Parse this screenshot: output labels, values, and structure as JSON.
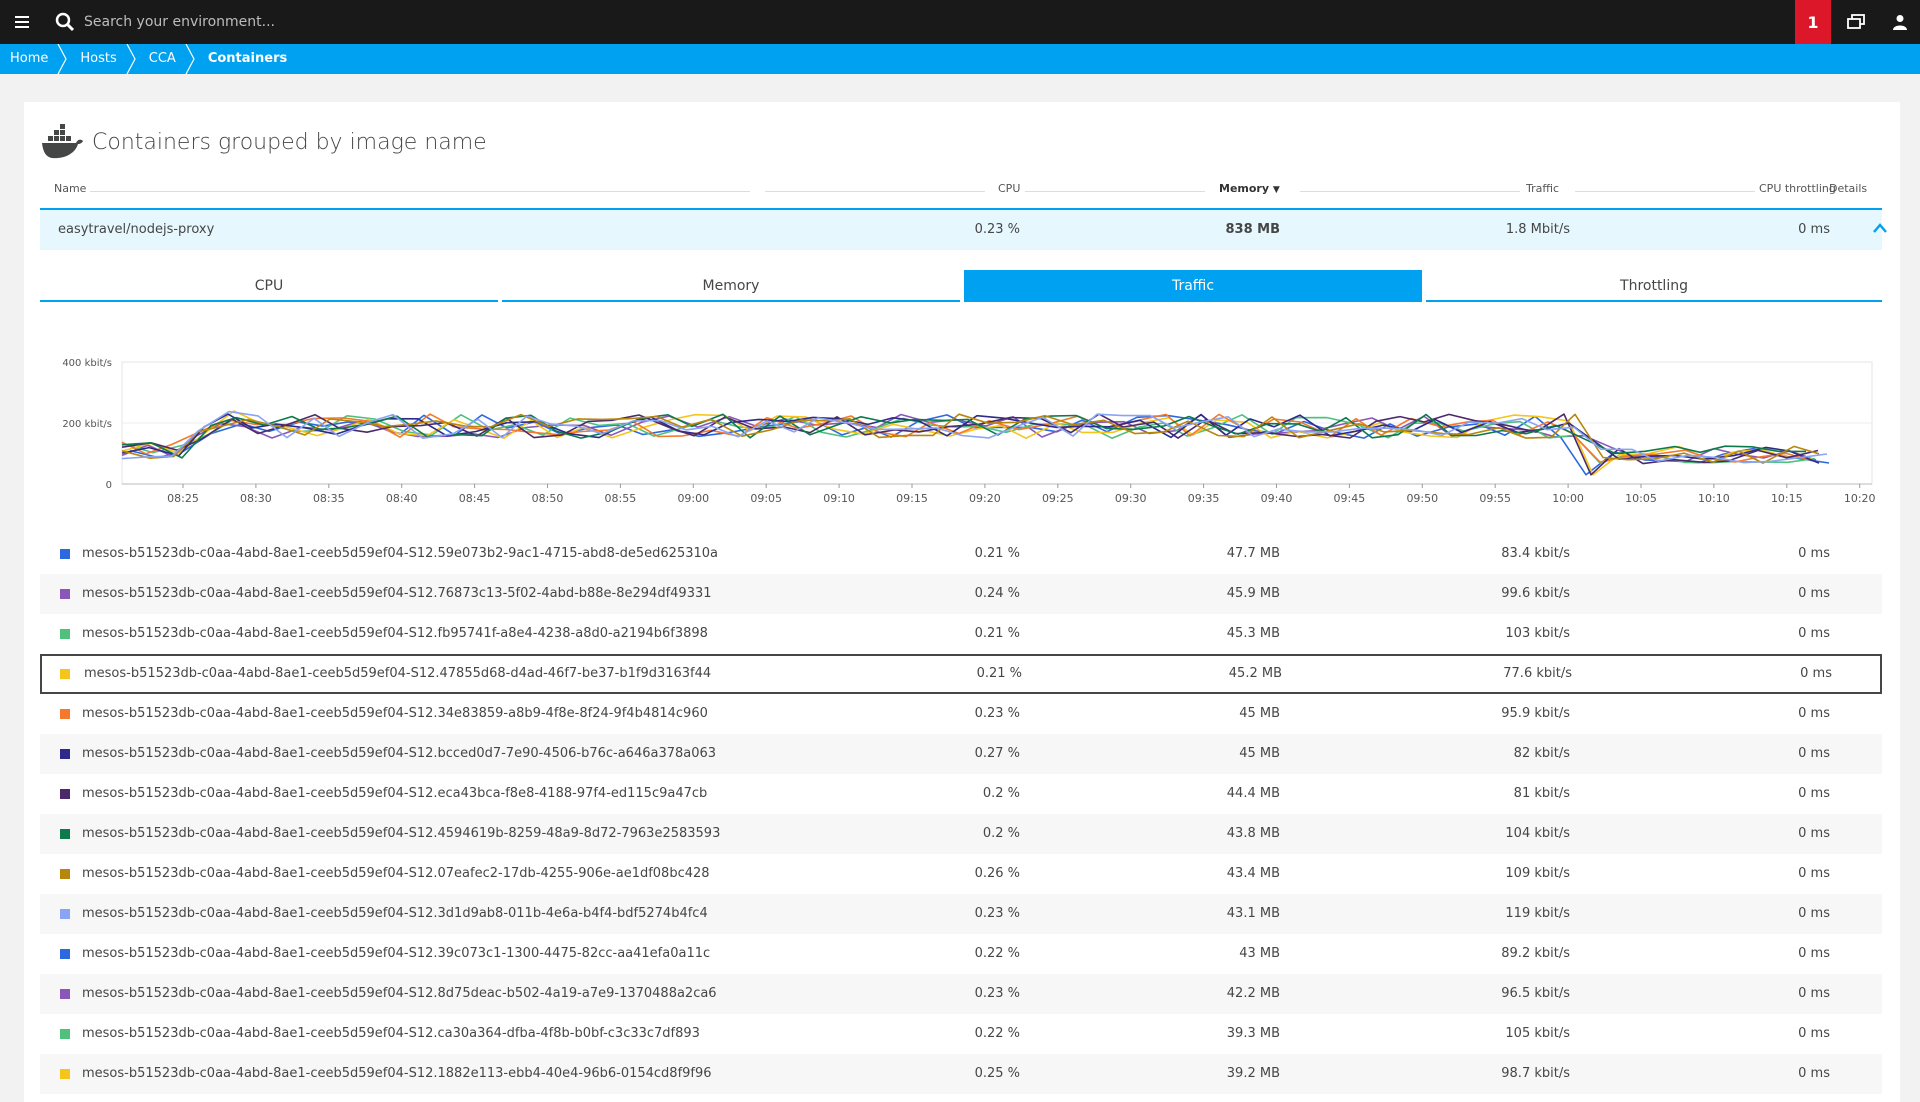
{
  "topbar": {
    "search_placeholder": "Search your environment...",
    "alert_count": "1"
  },
  "breadcrumb": [
    "Home",
    "Hosts",
    "CCA",
    "Containers"
  ],
  "card": {
    "title": "Containers grouped by image name",
    "columns": {
      "name": "Name",
      "cpu": "CPU",
      "memory": "Memory",
      "memory_sort": "▼",
      "traffic": "Traffic",
      "throttling": "CPU throttling",
      "details": "Details"
    },
    "group": {
      "name": "easytravel/nodejs-proxy",
      "cpu": "0.23 %",
      "memory": "838 MB",
      "traffic": "1.8 Mbit/s",
      "throttling": "0 ms"
    },
    "tabs": [
      "CPU",
      "Memory",
      "Traffic",
      "Throttling"
    ],
    "active_tab": "Traffic"
  },
  "chart_data": {
    "type": "line",
    "unit": "kbit/s",
    "y_ticks": [
      "400 kbit/s",
      "200 kbit/s",
      "0"
    ],
    "ylim": [
      0,
      400
    ],
    "x_ticks": [
      "08:25",
      "08:30",
      "08:35",
      "08:40",
      "08:45",
      "08:50",
      "08:55",
      "09:00",
      "09:05",
      "09:10",
      "09:15",
      "09:20",
      "09:25",
      "09:30",
      "09:35",
      "09:40",
      "09:45",
      "09:50",
      "09:55",
      "10:00",
      "10:05",
      "10:10",
      "10:15",
      "10:20"
    ],
    "series_colors": [
      "#2c69e0",
      "#8a56b8",
      "#4fc17d",
      "#f5c51b",
      "#f4792c",
      "#2d2a8b",
      "#4b2a6b",
      "#0c7a4a",
      "#b7860b",
      "#8aa4f5"
    ]
  },
  "containers": [
    {
      "color": "#2c69e0",
      "name": "mesos-b51523db-c0aa-4abd-8ae1-ceeb5d59ef04-S12.59e073b2-9ac1-4715-abd8-de5ed625310a",
      "cpu": "0.21 %",
      "memory": "47.7 MB",
      "traffic": "83.4 kbit/s",
      "throttling": "0 ms"
    },
    {
      "color": "#8a56b8",
      "name": "mesos-b51523db-c0aa-4abd-8ae1-ceeb5d59ef04-S12.76873c13-5f02-4abd-b88e-8e294df49331",
      "cpu": "0.24 %",
      "memory": "45.9 MB",
      "traffic": "99.6 kbit/s",
      "throttling": "0 ms"
    },
    {
      "color": "#4fc17d",
      "name": "mesos-b51523db-c0aa-4abd-8ae1-ceeb5d59ef04-S12.fb95741f-a8e4-4238-a8d0-a2194b6f3898",
      "cpu": "0.21 %",
      "memory": "45.3 MB",
      "traffic": "103 kbit/s",
      "throttling": "0 ms"
    },
    {
      "color": "#f5c51b",
      "name": "mesos-b51523db-c0aa-4abd-8ae1-ceeb5d59ef04-S12.47855d68-d4ad-46f7-be37-b1f9d3163f44",
      "cpu": "0.21 %",
      "memory": "45.2 MB",
      "traffic": "77.6 kbit/s",
      "throttling": "0 ms"
    },
    {
      "color": "#f4792c",
      "name": "mesos-b51523db-c0aa-4abd-8ae1-ceeb5d59ef04-S12.34e83859-a8b9-4f8e-8f24-9f4b4814c960",
      "cpu": "0.23 %",
      "memory": "45 MB",
      "traffic": "95.9 kbit/s",
      "throttling": "0 ms"
    },
    {
      "color": "#2d2a8b",
      "name": "mesos-b51523db-c0aa-4abd-8ae1-ceeb5d59ef04-S12.bcced0d7-7e90-4506-b76c-a646a378a063",
      "cpu": "0.27 %",
      "memory": "45 MB",
      "traffic": "82 kbit/s",
      "throttling": "0 ms"
    },
    {
      "color": "#4b2a6b",
      "name": "mesos-b51523db-c0aa-4abd-8ae1-ceeb5d59ef04-S12.eca43bca-f8e8-4188-97f4-ed115c9a47cb",
      "cpu": "0.2 %",
      "memory": "44.4 MB",
      "traffic": "81 kbit/s",
      "throttling": "0 ms"
    },
    {
      "color": "#0c7a4a",
      "name": "mesos-b51523db-c0aa-4abd-8ae1-ceeb5d59ef04-S12.4594619b-8259-48a9-8d72-7963e2583593",
      "cpu": "0.2 %",
      "memory": "43.8 MB",
      "traffic": "104 kbit/s",
      "throttling": "0 ms"
    },
    {
      "color": "#b7860b",
      "name": "mesos-b51523db-c0aa-4abd-8ae1-ceeb5d59ef04-S12.07eafec2-17db-4255-906e-ae1df08bc428",
      "cpu": "0.26 %",
      "memory": "43.4 MB",
      "traffic": "109 kbit/s",
      "throttling": "0 ms"
    },
    {
      "color": "#8aa4f5",
      "name": "mesos-b51523db-c0aa-4abd-8ae1-ceeb5d59ef04-S12.3d1d9ab8-011b-4e6a-b4f4-bdf5274b4fc4",
      "cpu": "0.23 %",
      "memory": "43.1 MB",
      "traffic": "119 kbit/s",
      "throttling": "0 ms"
    },
    {
      "color": "#2c69e0",
      "name": "mesos-b51523db-c0aa-4abd-8ae1-ceeb5d59ef04-S12.39c073c1-1300-4475-82cc-aa41efa0a11c",
      "cpu": "0.22 %",
      "memory": "43 MB",
      "traffic": "89.2 kbit/s",
      "throttling": "0 ms"
    },
    {
      "color": "#8a56b8",
      "name": "mesos-b51523db-c0aa-4abd-8ae1-ceeb5d59ef04-S12.8d75deac-b502-4a19-a7e9-1370488a2ca6",
      "cpu": "0.23 %",
      "memory": "42.2 MB",
      "traffic": "96.5 kbit/s",
      "throttling": "0 ms"
    },
    {
      "color": "#4fc17d",
      "name": "mesos-b51523db-c0aa-4abd-8ae1-ceeb5d59ef04-S12.ca30a364-dfba-4f8b-b0bf-c3c33c7df893",
      "cpu": "0.22 %",
      "memory": "39.3 MB",
      "traffic": "105 kbit/s",
      "throttling": "0 ms"
    },
    {
      "color": "#f5c51b",
      "name": "mesos-b51523db-c0aa-4abd-8ae1-ceeb5d59ef04-S12.1882e113-ebb4-40e4-96b6-0154cd8f9f96",
      "cpu": "0.25 %",
      "memory": "39.2 MB",
      "traffic": "98.7 kbit/s",
      "throttling": "0 ms"
    }
  ],
  "highlighted_row": 3
}
